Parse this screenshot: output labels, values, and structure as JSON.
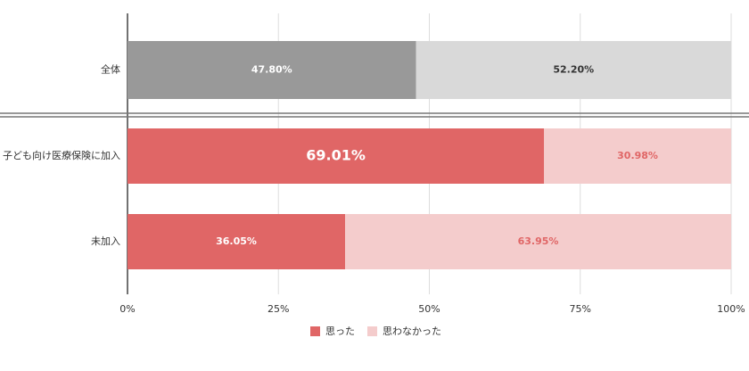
{
  "chart_data": {
    "type": "stacked-bar-horizontal",
    "categories": [
      "全体",
      "子ども向け医療保険に加入",
      "未加入"
    ],
    "series": [
      {
        "name": "思った",
        "color": "#e06666",
        "colors": [
          "#999999",
          "#e06666",
          "#e06666"
        ],
        "values": [
          47.8,
          69.01,
          36.05
        ],
        "value_labels": [
          "47.80%",
          "69.01%",
          "36.05%"
        ]
      },
      {
        "name": "思わなかった",
        "color": "#f4cccc",
        "colors": [
          "#d9d9d9",
          "#f4cccc",
          "#f4cccc"
        ],
        "values": [
          52.2,
          30.98,
          63.95
        ],
        "value_labels": [
          "52.20%",
          "30.98%",
          "63.95%"
        ]
      }
    ],
    "xlim": [
      0,
      100
    ],
    "xticks": [
      {
        "value": 0,
        "label": "0%"
      },
      {
        "value": 25,
        "label": "25%"
      },
      {
        "value": 50,
        "label": "50%"
      },
      {
        "value": 75,
        "label": "75%"
      },
      {
        "value": 100,
        "label": "100%"
      }
    ],
    "grid": true
  }
}
